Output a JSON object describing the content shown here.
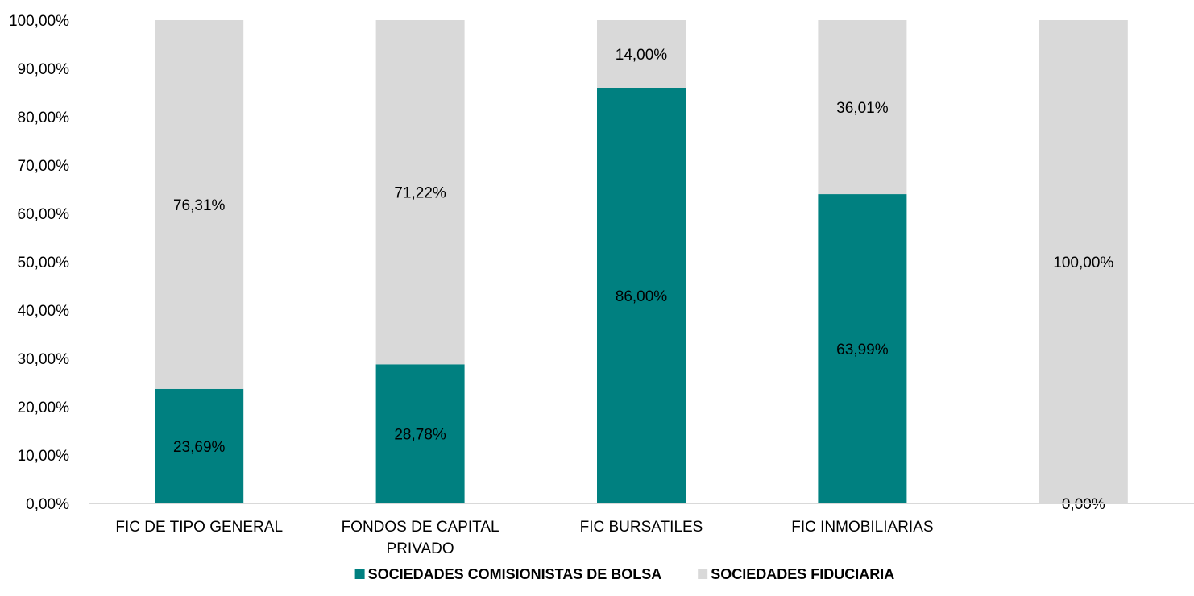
{
  "chart_data": {
    "type": "bar",
    "stacked": true,
    "percent": true,
    "categories": [
      [
        "FIC DE TIPO GENERAL"
      ],
      [
        "FONDOS DE CAPITAL",
        "PRIVADO"
      ],
      [
        "FIC BURSATILES"
      ],
      [
        "FIC INMOBILIARIAS"
      ],
      [
        ""
      ]
    ],
    "series": [
      {
        "name": "SOCIEDADES COMISIONISTAS DE BOLSA",
        "color": "#008080",
        "values": [
          23.69,
          28.78,
          86.0,
          63.99,
          0.0
        ],
        "labels": [
          "23,69%",
          "28,78%",
          "86,00%",
          "63,99%",
          "0,00%"
        ]
      },
      {
        "name": "SOCIEDADES FIDUCIARIA",
        "color": "#D9D9D9",
        "values": [
          76.31,
          71.22,
          14.0,
          36.01,
          100.0
        ],
        "labels": [
          "76,31%",
          "71,22%",
          "14,00%",
          "36,01%",
          "100,00%"
        ]
      }
    ],
    "ylim": [
      0,
      100
    ],
    "yticks": [
      "0,00%",
      "10,00%",
      "20,00%",
      "30,00%",
      "40,00%",
      "50,00%",
      "60,00%",
      "70,00%",
      "80,00%",
      "90,00%",
      "100,00%"
    ],
    "grid": false,
    "legend_position": "bottom",
    "title": "",
    "xlabel": "",
    "ylabel": ""
  }
}
